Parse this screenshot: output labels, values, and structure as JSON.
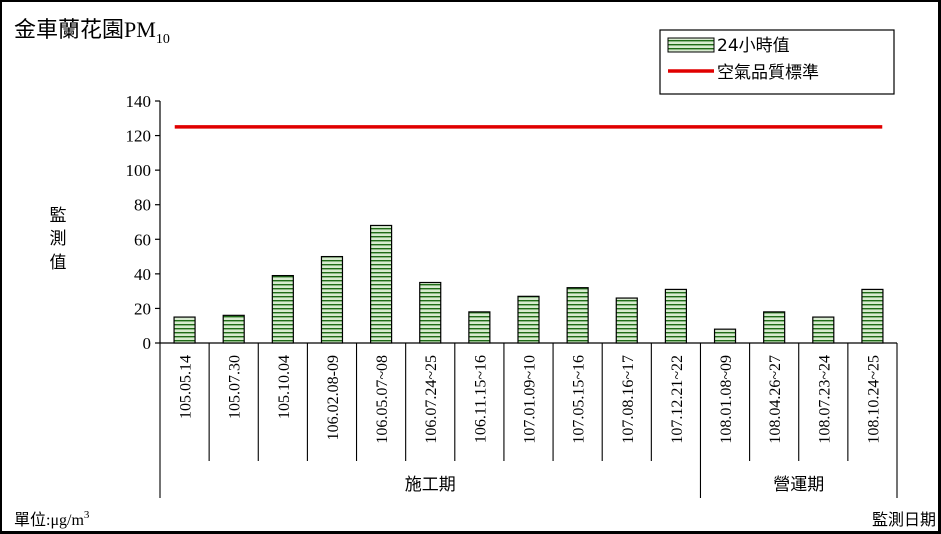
{
  "chart_data": {
    "type": "bar",
    "title_main": "金車蘭花園PM",
    "title_sub": "10",
    "ylabel_chars": [
      "監",
      "測",
      "值"
    ],
    "xlabel": "監測日期",
    "unit_prefix": "單位:μg/m",
    "unit_sup": "3",
    "ylim": [
      0,
      140
    ],
    "yticks": [
      0,
      20,
      40,
      60,
      80,
      100,
      120,
      140
    ],
    "categories": [
      "105.05.14",
      "105.07.30",
      "105.10.04",
      "106.02.08-09",
      "106.05.07~08",
      "106.07.24~25",
      "106.11.15~16",
      "107.01.09~10",
      "107.05.15~16",
      "107.08.16~17",
      "107.12.21~22",
      "108.01.08~09",
      "108.04.26~27",
      "108.07.23~24",
      "108.10.24~25"
    ],
    "series": [
      {
        "name": "24小時值",
        "values": [
          15,
          16,
          39,
          50,
          68,
          35,
          18,
          27,
          32,
          26,
          31,
          8,
          18,
          15,
          31
        ]
      },
      {
        "name": "空氣品質標準",
        "values": [
          125,
          125,
          125,
          125,
          125,
          125,
          125,
          125,
          125,
          125,
          125,
          125,
          125,
          125,
          125
        ]
      }
    ],
    "groups": [
      {
        "label": "施工期",
        "count": 11
      },
      {
        "label": "營運期",
        "count": 4
      }
    ],
    "legend_position": "top-right",
    "grid": false,
    "colors": {
      "bar_fill": "#d7ebcf",
      "bar_stripe": "#1f6b16",
      "standard_line": "#e00000",
      "axis": "#000000"
    }
  }
}
